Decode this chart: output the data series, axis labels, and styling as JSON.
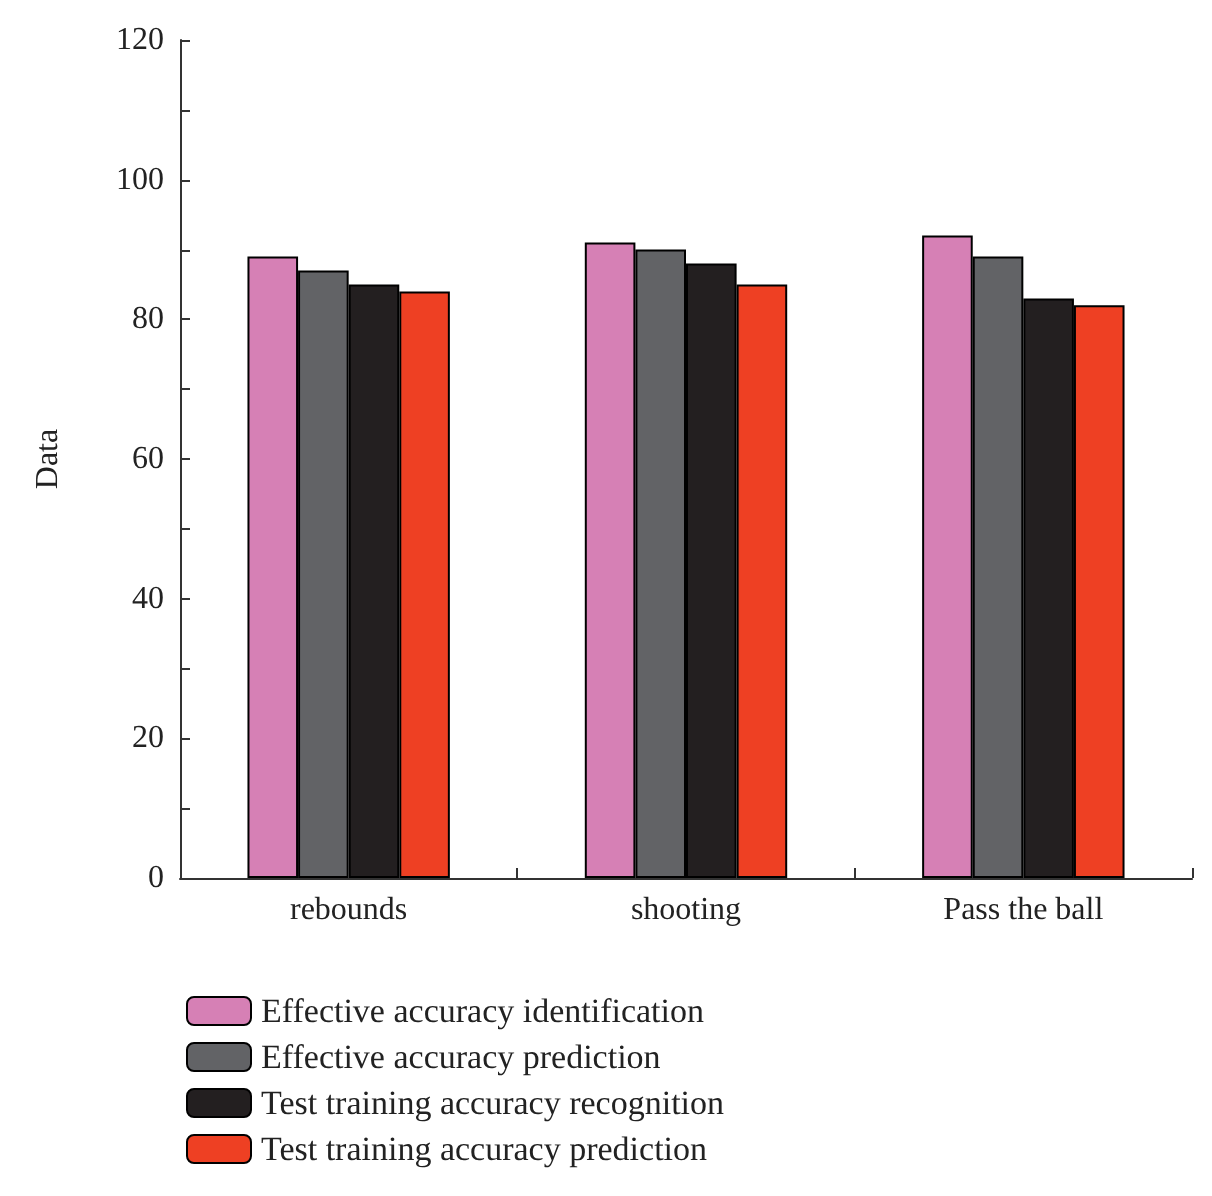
{
  "chart_data": {
    "type": "bar",
    "ylabel": "Data",
    "categories": [
      "rebounds",
      "shooting",
      "Pass the ball"
    ],
    "series": [
      {
        "name": "Effective accuracy identification",
        "color": "#d680b5",
        "values": [
          89,
          91,
          92
        ]
      },
      {
        "name": "Effective accuracy prediction",
        "color": "#626366",
        "values": [
          87,
          90,
          89
        ]
      },
      {
        "name": "Test training accuracy recognition",
        "color": "#231f20",
        "values": [
          85,
          88,
          83
        ]
      },
      {
        "name": "Test training accuracy prediction",
        "color": "#ee4023",
        "values": [
          84,
          85,
          82
        ]
      }
    ],
    "ylim": [
      0,
      120
    ],
    "yticks": [
      0,
      {
        "value": 10,
        "label": null
      },
      20,
      {
        "value": 30,
        "label": null
      },
      40,
      {
        "value": 50,
        "label": null
      },
      60,
      {
        "value": 70,
        "label": null
      },
      80,
      {
        "value": 90,
        "label": null
      },
      100,
      {
        "value": 110,
        "label": null
      },
      120
    ],
    "grid": false,
    "legend": "bottom"
  }
}
